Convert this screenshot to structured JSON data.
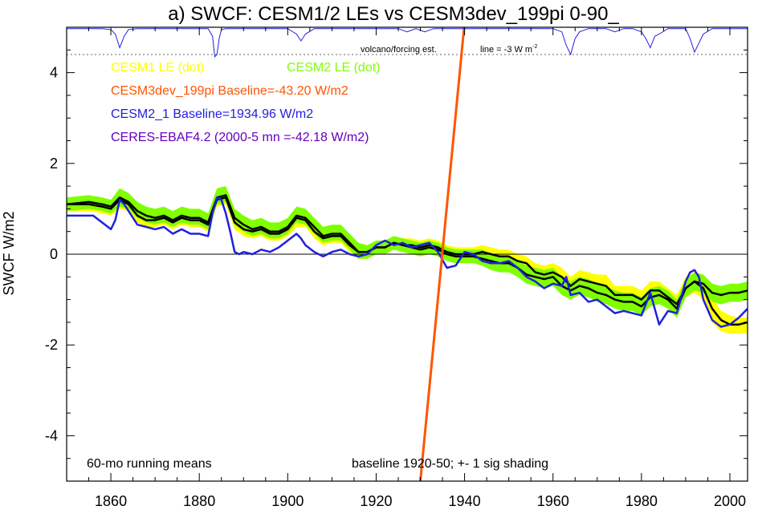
{
  "chart_data": {
    "type": "line",
    "title": "a) SWCF: CESM1/2 LEs vs CESM3dev_199pi 0-90_",
    "ylabel": "SWCF W/m2",
    "xlabel": "",
    "xlim": [
      1850,
      2004
    ],
    "ylim": [
      -5,
      5
    ],
    "x_ticks": [
      1860,
      1880,
      1900,
      1920,
      1940,
      1960,
      1980,
      2000
    ],
    "y_ticks": [
      -4,
      -2,
      0,
      2,
      4
    ],
    "grid": false,
    "legend_entries": [
      {
        "label": "CESM1 LE (dot)",
        "color": "#ffff00"
      },
      {
        "label": "CESM2 LE (dot)",
        "color": "#7fff00"
      },
      {
        "label": "CESM3dev_199pi Baseline=-43.20 W/m2",
        "color": "#ff5500"
      },
      {
        "label": "CESM2_1 Baseline=1934.96 W/m2",
        "color": "#2020e0"
      },
      {
        "label": "CERES-EBAF4.2 (2000-5 mn =-42.18 W/m2)",
        "color": "#6600bb"
      }
    ],
    "annotations": {
      "volcano_text": "volcano/forcing est.",
      "line_text": "line = -3 W m",
      "line_sup": "-2",
      "running_means": "60-mo running means",
      "baseline_note": "baseline 1920-50; +- 1 sig shading"
    },
    "reference_line_y": 4.4,
    "series": [
      {
        "name": "CESM1 LE (dot)",
        "kind": "band",
        "color": "#ffff00",
        "x": [
          1850,
          1855,
          1858,
          1860,
          1862,
          1864,
          1866,
          1868,
          1870,
          1872,
          1874,
          1876,
          1878,
          1880,
          1882,
          1884,
          1886,
          1888,
          1890,
          1892,
          1894,
          1896,
          1898,
          1900,
          1902,
          1904,
          1906,
          1908,
          1910,
          1912,
          1914,
          1916,
          1918,
          1920,
          1922,
          1924,
          1926,
          1928,
          1930,
          1932,
          1934,
          1936,
          1938,
          1940,
          1942,
          1944,
          1946,
          1948,
          1950,
          1952,
          1954,
          1956,
          1958,
          1960,
          1962,
          1964,
          1966,
          1968,
          1970,
          1972,
          1974,
          1976,
          1978,
          1980,
          1982,
          1984,
          1986,
          1988,
          1990,
          1992,
          1994,
          1996,
          1998,
          2000,
          2002,
          2004
        ],
        "upper": [
          1.25,
          1.25,
          1.2,
          1.15,
          1.35,
          1.25,
          1.0,
          0.9,
          0.9,
          0.95,
          0.85,
          0.95,
          0.9,
          0.9,
          0.8,
          1.35,
          1.4,
          0.85,
          0.7,
          0.65,
          0.7,
          0.6,
          0.6,
          0.7,
          0.95,
          0.9,
          0.7,
          0.5,
          0.55,
          0.55,
          0.35,
          0.2,
          0.15,
          0.3,
          0.3,
          0.4,
          0.35,
          0.35,
          0.3,
          0.35,
          0.3,
          0.2,
          0.15,
          0.15,
          0.15,
          0.2,
          0.15,
          0.1,
          0.1,
          0.0,
          -0.05,
          -0.2,
          -0.25,
          -0.2,
          -0.3,
          -0.5,
          -0.35,
          -0.4,
          -0.45,
          -0.45,
          -0.7,
          -0.7,
          -0.7,
          -0.8,
          -0.6,
          -0.6,
          -0.75,
          -0.9,
          -0.5,
          -0.4,
          -0.5,
          -0.95,
          -1.25,
          -1.35,
          -1.4,
          -1.4
        ],
        "lower": [
          0.95,
          0.95,
          0.9,
          0.85,
          1.0,
          0.95,
          0.7,
          0.6,
          0.6,
          0.65,
          0.55,
          0.65,
          0.6,
          0.6,
          0.5,
          1.05,
          1.1,
          0.55,
          0.4,
          0.35,
          0.4,
          0.3,
          0.3,
          0.4,
          0.6,
          0.6,
          0.35,
          0.2,
          0.25,
          0.25,
          0.05,
          -0.1,
          -0.1,
          0.0,
          0.05,
          0.1,
          0.1,
          0.05,
          0.0,
          0.05,
          0.0,
          -0.1,
          -0.15,
          -0.15,
          -0.15,
          -0.1,
          -0.15,
          -0.25,
          -0.25,
          -0.35,
          -0.4,
          -0.6,
          -0.65,
          -0.6,
          -0.7,
          -0.9,
          -0.75,
          -0.85,
          -0.9,
          -0.95,
          -1.15,
          -1.15,
          -1.15,
          -1.25,
          -1.05,
          -1.05,
          -1.2,
          -1.35,
          -0.95,
          -0.85,
          -1.0,
          -1.5,
          -1.7,
          -1.75,
          -1.75,
          -1.75
        ]
      },
      {
        "name": "CESM2 LE (dot)",
        "kind": "band",
        "color": "#7fff00",
        "x": [
          1850,
          1855,
          1858,
          1860,
          1862,
          1864,
          1866,
          1868,
          1870,
          1872,
          1874,
          1876,
          1878,
          1880,
          1882,
          1884,
          1886,
          1888,
          1890,
          1892,
          1894,
          1896,
          1898,
          1900,
          1902,
          1904,
          1906,
          1908,
          1910,
          1912,
          1914,
          1916,
          1918,
          1920,
          1922,
          1924,
          1926,
          1928,
          1930,
          1932,
          1934,
          1936,
          1938,
          1940,
          1942,
          1944,
          1946,
          1948,
          1950,
          1952,
          1954,
          1956,
          1958,
          1960,
          1962,
          1964,
          1966,
          1968,
          1970,
          1972,
          1974,
          1976,
          1978,
          1980,
          1982,
          1984,
          1986,
          1988,
          1990,
          1992,
          1994,
          1996,
          1998,
          2000,
          2002,
          2004
        ],
        "upper": [
          1.25,
          1.3,
          1.25,
          1.2,
          1.45,
          1.35,
          1.15,
          1.05,
          1.0,
          1.05,
          0.95,
          1.05,
          1.0,
          1.0,
          0.9,
          1.45,
          1.5,
          1.0,
          0.85,
          0.75,
          0.8,
          0.7,
          0.7,
          0.8,
          1.05,
          1.0,
          0.8,
          0.6,
          0.65,
          0.65,
          0.45,
          0.25,
          0.2,
          0.3,
          0.3,
          0.4,
          0.35,
          0.3,
          0.25,
          0.3,
          0.25,
          0.15,
          0.1,
          0.1,
          0.1,
          0.1,
          0.0,
          -0.05,
          -0.05,
          -0.15,
          -0.25,
          -0.3,
          -0.35,
          -0.3,
          -0.5,
          -0.6,
          -0.5,
          -0.55,
          -0.65,
          -0.7,
          -0.8,
          -0.85,
          -0.85,
          -0.95,
          -0.75,
          -0.7,
          -0.8,
          -1.0,
          -0.55,
          -0.4,
          -0.45,
          -0.65,
          -0.7,
          -0.65,
          -0.65,
          -0.6
        ],
        "lower": [
          0.95,
          1.0,
          0.95,
          0.9,
          1.05,
          1.0,
          0.8,
          0.7,
          0.65,
          0.7,
          0.6,
          0.7,
          0.65,
          0.65,
          0.55,
          1.1,
          1.15,
          0.65,
          0.5,
          0.4,
          0.45,
          0.35,
          0.35,
          0.45,
          0.7,
          0.65,
          0.45,
          0.25,
          0.3,
          0.3,
          0.1,
          -0.1,
          -0.1,
          0.0,
          0.0,
          0.1,
          0.05,
          0.0,
          -0.05,
          0.0,
          -0.05,
          -0.15,
          -0.2,
          -0.2,
          -0.2,
          -0.25,
          -0.35,
          -0.4,
          -0.4,
          -0.5,
          -0.65,
          -0.7,
          -0.75,
          -0.7,
          -0.9,
          -1.0,
          -0.9,
          -0.95,
          -1.05,
          -1.1,
          -1.2,
          -1.25,
          -1.25,
          -1.35,
          -1.15,
          -1.1,
          -1.2,
          -1.4,
          -0.95,
          -0.8,
          -0.85,
          -1.05,
          -1.1,
          -1.05,
          -1.05,
          -1.0
        ]
      },
      {
        "name": "CESM1 LE mean",
        "kind": "line",
        "color": "#000000",
        "width": 2.5,
        "x": [
          1850,
          1855,
          1858,
          1860,
          1862,
          1864,
          1866,
          1868,
          1870,
          1872,
          1874,
          1876,
          1878,
          1880,
          1882,
          1884,
          1886,
          1888,
          1890,
          1892,
          1894,
          1896,
          1898,
          1900,
          1902,
          1904,
          1906,
          1908,
          1910,
          1912,
          1914,
          1916,
          1918,
          1920,
          1922,
          1924,
          1926,
          1928,
          1930,
          1932,
          1934,
          1936,
          1938,
          1940,
          1942,
          1944,
          1946,
          1948,
          1950,
          1952,
          1954,
          1956,
          1958,
          1960,
          1962,
          1964,
          1966,
          1968,
          1970,
          1972,
          1974,
          1976,
          1978,
          1980,
          1982,
          1984,
          1986,
          1988,
          1990,
          1992,
          1994,
          1996,
          1998,
          2000,
          2002,
          2004
        ],
        "y": [
          1.1,
          1.1,
          1.05,
          1.0,
          1.2,
          1.1,
          0.85,
          0.75,
          0.75,
          0.8,
          0.7,
          0.8,
          0.75,
          0.75,
          0.65,
          1.2,
          1.25,
          0.7,
          0.55,
          0.5,
          0.55,
          0.45,
          0.45,
          0.55,
          0.8,
          0.75,
          0.5,
          0.35,
          0.4,
          0.4,
          0.2,
          0.05,
          0.05,
          0.15,
          0.15,
          0.25,
          0.2,
          0.2,
          0.15,
          0.2,
          0.15,
          0.05,
          0.0,
          0.0,
          0.0,
          0.05,
          0.0,
          -0.05,
          -0.05,
          -0.15,
          -0.2,
          -0.4,
          -0.45,
          -0.4,
          -0.5,
          -0.7,
          -0.55,
          -0.6,
          -0.65,
          -0.7,
          -0.9,
          -0.9,
          -0.9,
          -1.0,
          -0.8,
          -0.8,
          -0.95,
          -1.1,
          -0.75,
          -0.6,
          -0.75,
          -1.2,
          -1.45,
          -1.55,
          -1.55,
          -1.5
        ]
      },
      {
        "name": "CESM2 LE mean",
        "kind": "line",
        "color": "#000000",
        "width": 2.5,
        "x": [
          1850,
          1855,
          1858,
          1860,
          1862,
          1864,
          1866,
          1868,
          1870,
          1872,
          1874,
          1876,
          1878,
          1880,
          1882,
          1884,
          1886,
          1888,
          1890,
          1892,
          1894,
          1896,
          1898,
          1900,
          1902,
          1904,
          1906,
          1908,
          1910,
          1912,
          1914,
          1916,
          1918,
          1920,
          1922,
          1924,
          1926,
          1928,
          1930,
          1932,
          1934,
          1936,
          1938,
          1940,
          1942,
          1944,
          1946,
          1948,
          1950,
          1952,
          1954,
          1956,
          1958,
          1960,
          1962,
          1964,
          1966,
          1968,
          1970,
          1972,
          1974,
          1976,
          1978,
          1980,
          1982,
          1984,
          1986,
          1988,
          1990,
          1992,
          1994,
          1996,
          1998,
          2000,
          2002,
          2004
        ],
        "y": [
          1.1,
          1.15,
          1.1,
          1.05,
          1.25,
          1.15,
          0.95,
          0.85,
          0.8,
          0.85,
          0.75,
          0.85,
          0.8,
          0.8,
          0.7,
          1.25,
          1.3,
          0.8,
          0.65,
          0.55,
          0.6,
          0.5,
          0.5,
          0.6,
          0.85,
          0.8,
          0.6,
          0.4,
          0.45,
          0.45,
          0.25,
          0.05,
          0.05,
          0.15,
          0.15,
          0.25,
          0.2,
          0.15,
          0.1,
          0.15,
          0.1,
          0.0,
          -0.05,
          -0.05,
          -0.05,
          -0.1,
          -0.15,
          -0.2,
          -0.2,
          -0.3,
          -0.45,
          -0.5,
          -0.55,
          -0.5,
          -0.7,
          -0.8,
          -0.7,
          -0.75,
          -0.85,
          -0.9,
          -1.0,
          -1.05,
          -1.05,
          -1.15,
          -0.95,
          -0.9,
          -1.0,
          -1.2,
          -0.75,
          -0.6,
          -0.65,
          -0.85,
          -0.9,
          -0.85,
          -0.85,
          -0.8
        ]
      },
      {
        "name": "CESM2_1 Baseline=1934.96 W/m2",
        "kind": "line",
        "color": "#2020e0",
        "width": 2.5,
        "x": [
          1850,
          1853,
          1856,
          1858,
          1860,
          1861,
          1862,
          1863,
          1864,
          1865,
          1866,
          1868,
          1870,
          1872,
          1874,
          1876,
          1878,
          1880,
          1882,
          1883,
          1884,
          1885,
          1886,
          1887,
          1888,
          1889,
          1890,
          1892,
          1894,
          1896,
          1898,
          1900,
          1902,
          1903,
          1904,
          1906,
          1908,
          1910,
          1912,
          1914,
          1916,
          1918,
          1920,
          1922,
          1924,
          1926,
          1928,
          1930,
          1932,
          1934,
          1936,
          1938,
          1940,
          1942,
          1944,
          1946,
          1948,
          1950,
          1952,
          1954,
          1956,
          1958,
          1960,
          1962,
          1963,
          1964,
          1966,
          1968,
          1970,
          1972,
          1974,
          1976,
          1978,
          1980,
          1982,
          1983,
          1984,
          1986,
          1988,
          1990,
          1991,
          1992,
          1993,
          1994,
          1996,
          1998,
          2000,
          2002,
          2004
        ],
        "y": [
          0.85,
          0.85,
          0.85,
          0.7,
          0.55,
          0.75,
          1.2,
          1.1,
          0.95,
          0.8,
          0.65,
          0.6,
          0.55,
          0.6,
          0.45,
          0.55,
          0.45,
          0.45,
          0.4,
          0.9,
          1.25,
          1.2,
          0.9,
          0.5,
          0.05,
          0.0,
          0.05,
          0.0,
          0.1,
          0.05,
          0.15,
          0.3,
          0.45,
          0.35,
          0.2,
          0.05,
          -0.05,
          0.05,
          0.1,
          0.0,
          -0.05,
          0.0,
          0.2,
          0.3,
          0.2,
          0.25,
          0.15,
          0.2,
          0.25,
          0.05,
          -0.3,
          -0.25,
          0.05,
          0.0,
          -0.15,
          -0.2,
          -0.2,
          -0.15,
          -0.3,
          -0.5,
          -0.6,
          -0.75,
          -0.65,
          -0.7,
          -0.5,
          -0.9,
          -0.85,
          -1.05,
          -1.0,
          -1.15,
          -1.3,
          -1.25,
          -1.3,
          -1.35,
          -0.85,
          -1.2,
          -1.55,
          -1.25,
          -1.3,
          -0.6,
          -0.4,
          -0.35,
          -0.5,
          -1.0,
          -1.45,
          -1.6,
          -1.55,
          -1.4,
          -1.2
        ]
      },
      {
        "name": "CESM3dev_199pi Baseline=-43.20 W/m2",
        "kind": "line",
        "color": "#ff5500",
        "width": 3,
        "x": [
          1930,
          1939.9
        ],
        "y": [
          -5,
          5
        ]
      }
    ],
    "volcano_forcing": {
      "color": "#2020e0",
      "x": [
        1850,
        1858,
        1860,
        1861,
        1862,
        1863,
        1864,
        1866,
        1882,
        1883,
        1883.5,
        1884,
        1884.5,
        1885,
        1886,
        1900,
        1902,
        1903,
        1904,
        1906,
        1925,
        1927,
        1929,
        1931,
        1933,
        1935,
        1960,
        1962,
        1963,
        1964,
        1965,
        1966,
        1968,
        1972,
        1974,
        1976,
        1978,
        1980,
        1981,
        1982,
        1983,
        1984,
        1986,
        1988,
        1990,
        1991,
        1992,
        1993,
        1994,
        1996,
        2004
      ],
      "y": [
        4.97,
        4.97,
        4.95,
        4.85,
        4.55,
        4.8,
        4.95,
        4.97,
        4.97,
        4.8,
        4.35,
        4.4,
        4.75,
        4.95,
        4.97,
        4.97,
        4.85,
        4.7,
        4.85,
        4.97,
        4.97,
        4.9,
        4.97,
        4.9,
        4.97,
        4.97,
        4.97,
        4.9,
        4.6,
        4.4,
        4.75,
        4.9,
        4.97,
        4.97,
        4.9,
        4.97,
        4.97,
        4.9,
        4.75,
        4.55,
        4.8,
        4.85,
        4.97,
        4.97,
        4.97,
        4.75,
        4.45,
        4.65,
        4.85,
        4.97,
        4.97
      ]
    }
  }
}
